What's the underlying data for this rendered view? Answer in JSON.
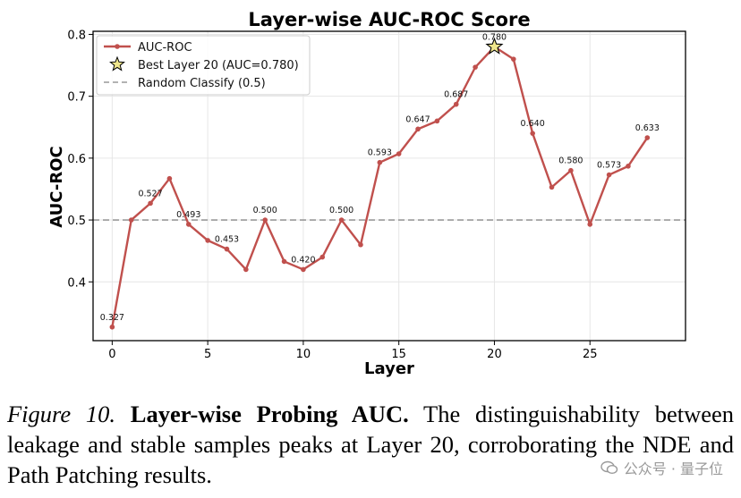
{
  "chart_data": {
    "type": "line",
    "title": "Layer-wise AUC-ROC Score",
    "xlabel": "Layer",
    "ylabel": "AUC-ROC",
    "xlim": [
      -1,
      30
    ],
    "ylim": [
      0.305,
      0.805
    ],
    "xticks": [
      0,
      5,
      10,
      15,
      20,
      25
    ],
    "yticks": [
      0.4,
      0.5,
      0.6,
      0.7,
      0.8
    ],
    "ytick_labels": [
      "0.4",
      "0.5",
      "0.6",
      "0.7",
      "0.8"
    ],
    "grid": true,
    "legend_position": "top-left",
    "series": [
      {
        "name": "AUC-ROC",
        "color": "#c0504d",
        "x": [
          0,
          1,
          2,
          3,
          4,
          5,
          6,
          7,
          8,
          9,
          10,
          11,
          12,
          13,
          14,
          15,
          16,
          17,
          18,
          19,
          20,
          21,
          22,
          23,
          24,
          25,
          26,
          27,
          28
        ],
        "values": [
          0.327,
          0.5,
          0.527,
          0.567,
          0.493,
          0.467,
          0.453,
          0.42,
          0.5,
          0.433,
          0.42,
          0.44,
          0.5,
          0.46,
          0.593,
          0.607,
          0.647,
          0.66,
          0.687,
          0.747,
          0.78,
          0.76,
          0.64,
          0.553,
          0.58,
          0.493,
          0.573,
          0.587,
          0.633
        ]
      }
    ],
    "data_labels": [
      {
        "x": 0,
        "y": 0.327,
        "text": "0.327"
      },
      {
        "x": 2,
        "y": 0.527,
        "text": "0.527"
      },
      {
        "x": 4,
        "y": 0.493,
        "text": "0.493"
      },
      {
        "x": 6,
        "y": 0.453,
        "text": "0.453"
      },
      {
        "x": 8,
        "y": 0.5,
        "text": "0.500"
      },
      {
        "x": 10,
        "y": 0.42,
        "text": "0.420"
      },
      {
        "x": 12,
        "y": 0.5,
        "text": "0.500"
      },
      {
        "x": 14,
        "y": 0.593,
        "text": "0.593"
      },
      {
        "x": 16,
        "y": 0.647,
        "text": "0.647"
      },
      {
        "x": 18,
        "y": 0.687,
        "text": "0.687"
      },
      {
        "x": 20,
        "y": 0.78,
        "text": "0.780"
      },
      {
        "x": 22,
        "y": 0.64,
        "text": "0.640"
      },
      {
        "x": 24,
        "y": 0.58,
        "text": "0.580"
      },
      {
        "x": 26,
        "y": 0.573,
        "text": "0.573"
      },
      {
        "x": 28,
        "y": 0.633,
        "text": "0.633"
      }
    ],
    "best_point": {
      "x": 20,
      "y": 0.78,
      "label": "Best Layer 20 (AUC=0.780)",
      "color": "#f0e68c"
    },
    "reference_line": {
      "y": 0.5,
      "label": "Random Classify (0.5)",
      "color": "#999999"
    }
  },
  "caption": {
    "figure_label": "Figure 10.",
    "figure_title": "Layer-wise Probing AUC.",
    "text": "The distinguishability between leakage and stable samples peaks at Layer 20, corroborating the NDE and Path Patching results."
  },
  "watermark": {
    "text": "公众号 · 量子位",
    "icon": "wechat-icon"
  }
}
